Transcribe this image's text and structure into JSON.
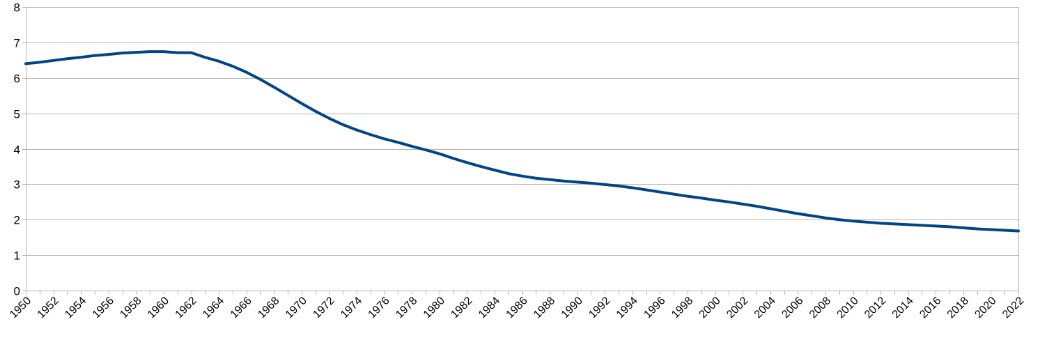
{
  "chart_data": {
    "type": "line",
    "title": "",
    "xlabel": "",
    "ylabel": "",
    "ylim": [
      0,
      8
    ],
    "y_ticks": [
      "0",
      "1",
      "2",
      "3",
      "4",
      "5",
      "6",
      "7",
      "8"
    ],
    "x_tick_labels": [
      "1950",
      "1952",
      "1954",
      "1956",
      "1958",
      "1960",
      "1962",
      "1964",
      "1966",
      "1968",
      "1970",
      "1972",
      "1974",
      "1976",
      "1978",
      "1980",
      "1982",
      "1984",
      "1986",
      "1988",
      "1990",
      "1992",
      "1994",
      "1996",
      "1998",
      "2000",
      "2002",
      "2004",
      "2006",
      "2008",
      "2010",
      "2012",
      "2014",
      "2016",
      "2018",
      "2020",
      "2022"
    ],
    "grid": true,
    "legend": "none",
    "x": [
      1950,
      1951,
      1952,
      1953,
      1954,
      1955,
      1956,
      1957,
      1958,
      1959,
      1960,
      1961,
      1962,
      1963,
      1964,
      1965,
      1966,
      1967,
      1968,
      1969,
      1970,
      1971,
      1972,
      1973,
      1974,
      1975,
      1976,
      1977,
      1978,
      1979,
      1980,
      1981,
      1982,
      1983,
      1984,
      1985,
      1986,
      1987,
      1988,
      1989,
      1990,
      1991,
      1992,
      1993,
      1994,
      1995,
      1996,
      1997,
      1998,
      1999,
      2000,
      2001,
      2002,
      2003,
      2004,
      2005,
      2006,
      2007,
      2008,
      2009,
      2010,
      2011,
      2012,
      2013,
      2014,
      2015,
      2016,
      2017,
      2018,
      2019,
      2020,
      2021,
      2022
    ],
    "series": [
      {
        "color": "#004586",
        "values": [
          6.4,
          6.44,
          6.49,
          6.54,
          6.58,
          6.63,
          6.66,
          6.7,
          6.72,
          6.74,
          6.74,
          6.71,
          6.71,
          6.58,
          6.47,
          6.33,
          6.16,
          5.96,
          5.74,
          5.51,
          5.28,
          5.06,
          4.86,
          4.68,
          4.53,
          4.4,
          4.28,
          4.18,
          4.07,
          3.97,
          3.86,
          3.73,
          3.61,
          3.5,
          3.4,
          3.3,
          3.23,
          3.17,
          3.13,
          3.09,
          3.06,
          3.03,
          2.99,
          2.95,
          2.9,
          2.84,
          2.78,
          2.72,
          2.66,
          2.61,
          2.55,
          2.5,
          2.44,
          2.38,
          2.31,
          2.24,
          2.17,
          2.11,
          2.05,
          2.0,
          1.96,
          1.93,
          1.9,
          1.88,
          1.86,
          1.84,
          1.82,
          1.8,
          1.77,
          1.74,
          1.72,
          1.7,
          1.68
        ]
      }
    ]
  }
}
